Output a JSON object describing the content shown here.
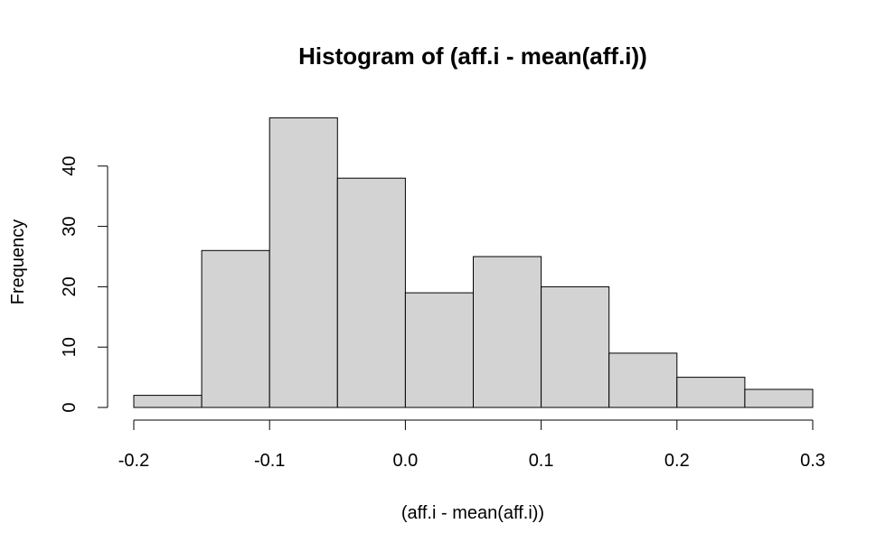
{
  "chart_data": {
    "type": "bar",
    "title": "Histogram of (aff.i - mean(aff.i))",
    "xlabel": "(aff.i - mean(aff.i))",
    "ylabel": "Frequency",
    "bins": [
      {
        "start": -0.2,
        "end": -0.15,
        "count": 2
      },
      {
        "start": -0.15,
        "end": -0.1,
        "count": 26
      },
      {
        "start": -0.1,
        "end": -0.05,
        "count": 48
      },
      {
        "start": -0.05,
        "end": 0.0,
        "count": 38
      },
      {
        "start": 0.0,
        "end": 0.05,
        "count": 19
      },
      {
        "start": 0.05,
        "end": 0.1,
        "count": 25
      },
      {
        "start": 0.1,
        "end": 0.15,
        "count": 20
      },
      {
        "start": 0.15,
        "end": 0.2,
        "count": 9
      },
      {
        "start": 0.2,
        "end": 0.25,
        "count": 5
      },
      {
        "start": 0.25,
        "end": 0.3,
        "count": 3
      }
    ],
    "xlim": [
      -0.2,
      0.3
    ],
    "ylim": [
      0,
      48
    ],
    "x_ticks": [
      {
        "value": -0.2,
        "label": "-0.2"
      },
      {
        "value": -0.1,
        "label": "-0.1"
      },
      {
        "value": 0.0,
        "label": "0.0"
      },
      {
        "value": 0.1,
        "label": "0.1"
      },
      {
        "value": 0.2,
        "label": "0.2"
      },
      {
        "value": 0.3,
        "label": "0.3"
      }
    ],
    "y_ticks": [
      {
        "value": 0,
        "label": "0"
      },
      {
        "value": 10,
        "label": "10"
      },
      {
        "value": 20,
        "label": "20"
      },
      {
        "value": 30,
        "label": "30"
      },
      {
        "value": 40,
        "label": "40"
      }
    ],
    "grid": false,
    "colors": {
      "bar_fill": "#d3d3d3",
      "bar_stroke": "#000000"
    }
  }
}
